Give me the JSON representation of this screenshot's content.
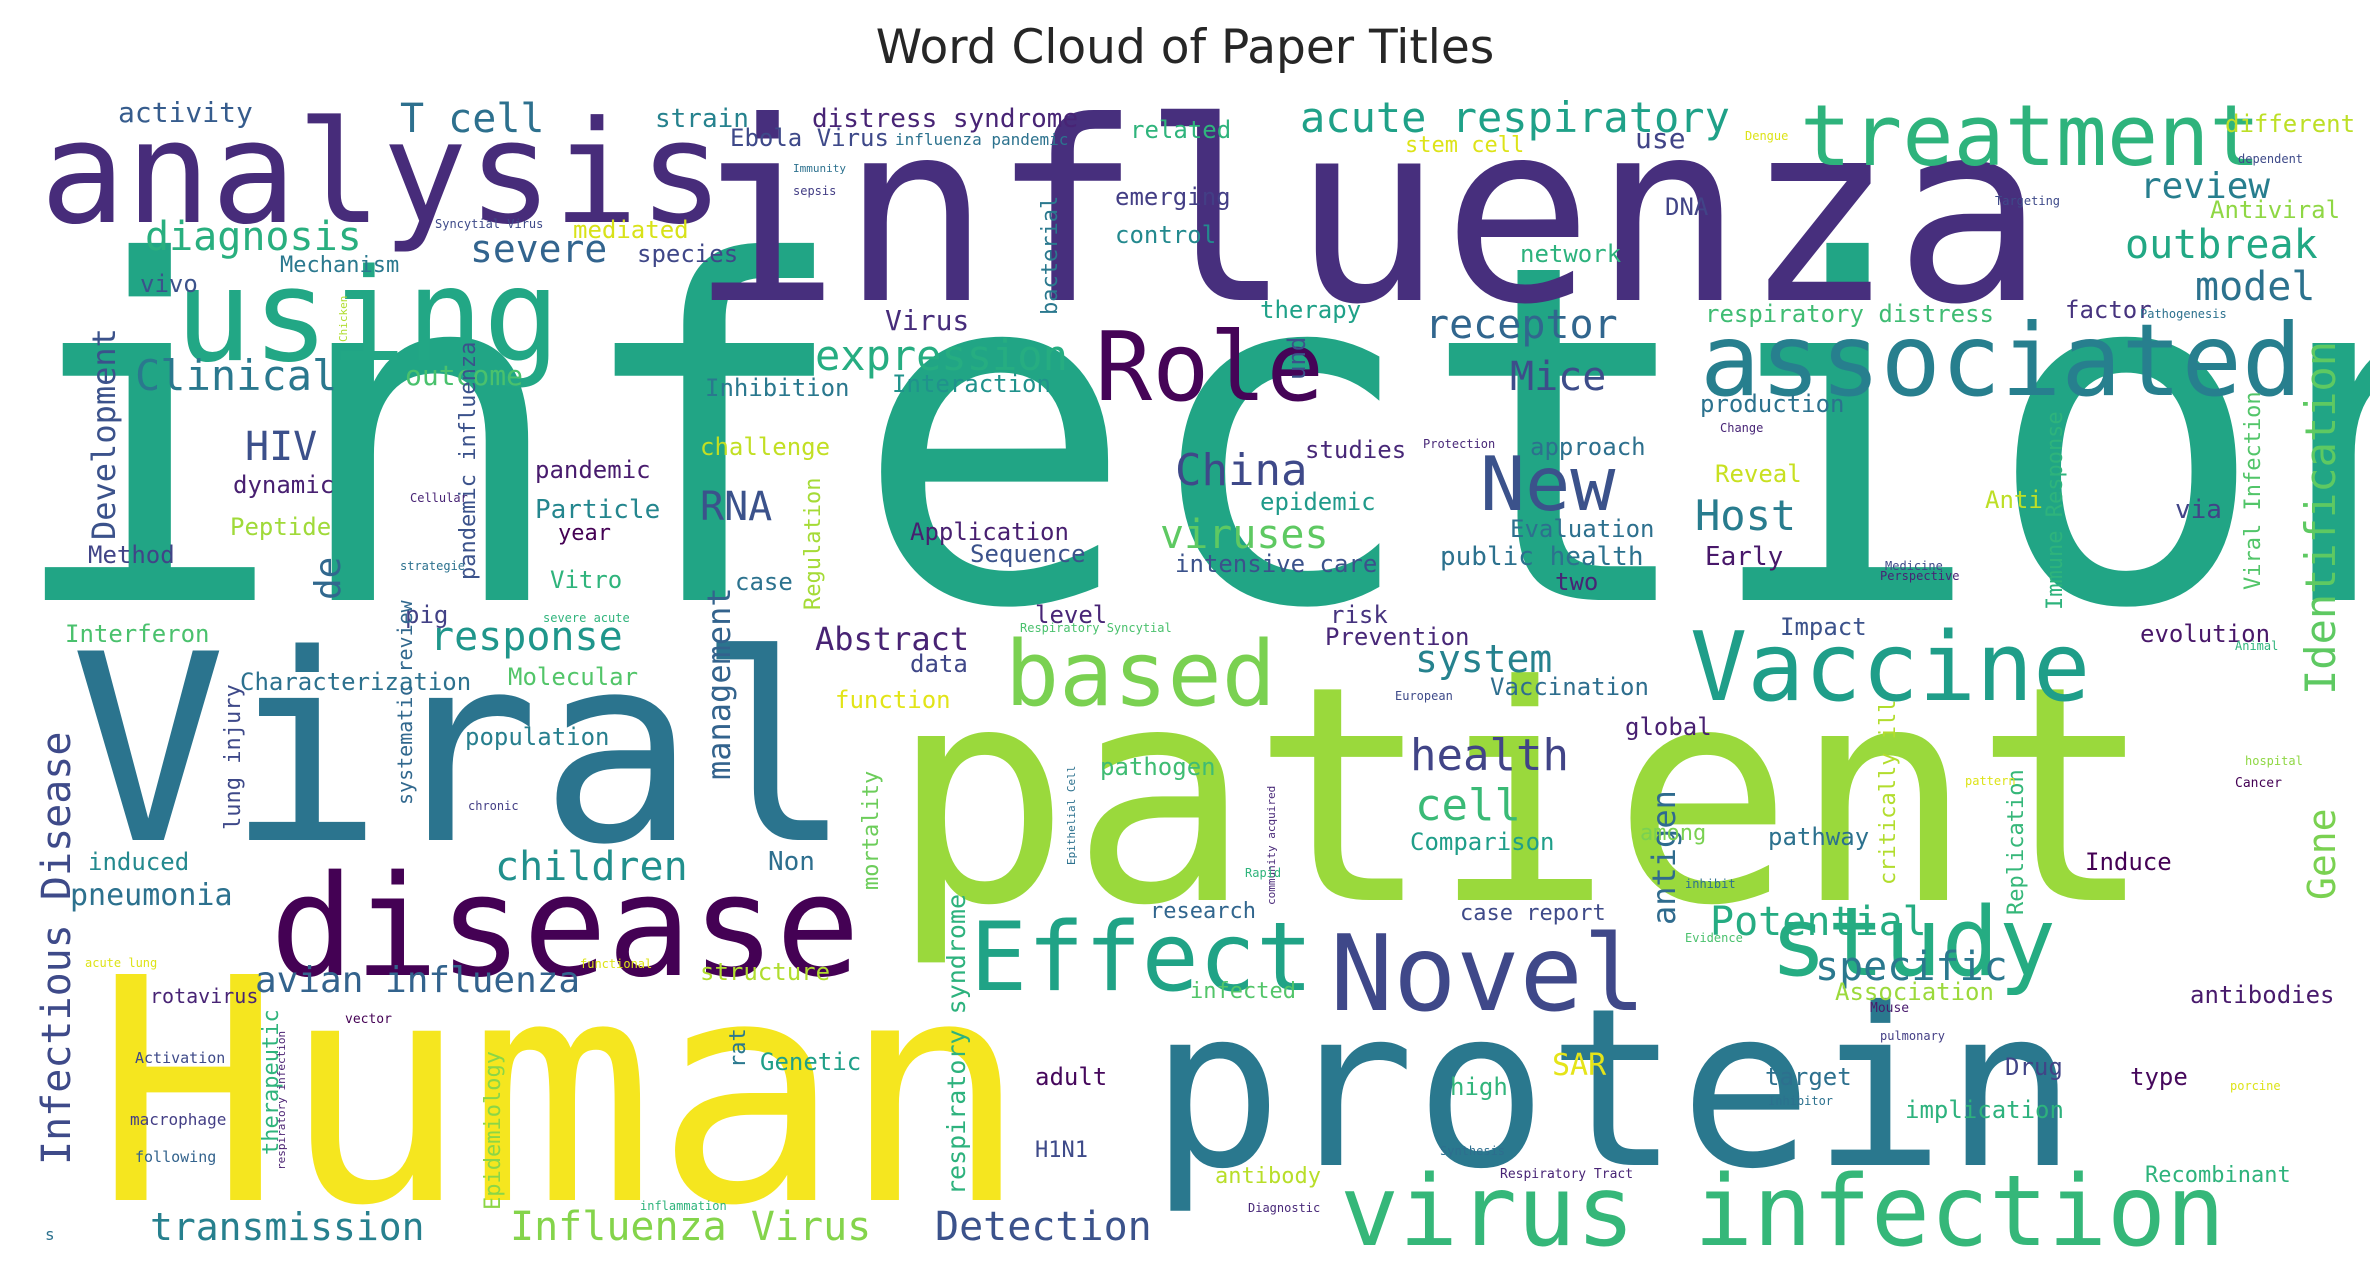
{
  "figure": {
    "title": "Word Cloud of Paper Titles"
  },
  "cloud": {
    "colormap": "viridis",
    "words": [
      {
        "text": "infection",
        "color": "#21a585"
      },
      {
        "text": "influenza",
        "color": "#472f7d"
      },
      {
        "text": "Human",
        "color": "#f5e61f"
      },
      {
        "text": "patient",
        "color": "#9ad93c"
      },
      {
        "text": "Viral",
        "color": "#2b748e"
      },
      {
        "text": "protein",
        "color": "#2a788e"
      },
      {
        "text": "analysis",
        "color": "#472c7a"
      },
      {
        "text": "disease",
        "color": "#440154"
      },
      {
        "text": "using",
        "color": "#22a785"
      },
      {
        "text": "treatment",
        "color": "#2eb37c"
      },
      {
        "text": "associated",
        "color": "#277f8e"
      },
      {
        "text": "Novel",
        "color": "#3f4889"
      },
      {
        "text": "virus infection",
        "color": "#35b779"
      },
      {
        "text": "Vaccine",
        "color": "#1f9e89"
      },
      {
        "text": "Effect",
        "color": "#20a386"
      },
      {
        "text": "study",
        "color": "#25ac82"
      },
      {
        "text": "based",
        "color": "#7ad151"
      },
      {
        "text": "Role",
        "color": "#450457"
      },
      {
        "text": "New",
        "color": "#3b528b"
      },
      {
        "text": "Identification",
        "color": "#5ec962"
      },
      {
        "text": "Infectious Disease",
        "color": "#3e4a89"
      },
      {
        "text": "respiratory syndrome",
        "color": "#2db27d"
      },
      {
        "text": "acute respiratory",
        "color": "#1fa188"
      },
      {
        "text": "expression",
        "color": "#26ad81"
      },
      {
        "text": "Clinical",
        "color": "#2a788e"
      },
      {
        "text": "diagnosis",
        "color": "#29af7f"
      },
      {
        "text": "T cell",
        "color": "#2d708e"
      },
      {
        "text": "severe",
        "color": "#32648e"
      },
      {
        "text": "outbreak",
        "color": "#22a884"
      },
      {
        "text": "review",
        "color": "#277e8e"
      },
      {
        "text": "model",
        "color": "#2c728e"
      },
      {
        "text": "receptor",
        "color": "#31668e"
      },
      {
        "text": "China",
        "color": "#3e4989"
      },
      {
        "text": "HIV",
        "color": "#3c508b"
      },
      {
        "text": "RNA",
        "color": "#3b528b"
      },
      {
        "text": "viruses",
        "color": "#5ec962"
      },
      {
        "text": "Host",
        "color": "#287c8e"
      },
      {
        "text": "Development",
        "color": "#3b528b"
      },
      {
        "text": "Mice",
        "color": "#3d4d8a"
      },
      {
        "text": "response",
        "color": "#1f968b"
      },
      {
        "text": "system",
        "color": "#26828e"
      },
      {
        "text": "health",
        "color": "#414487"
      },
      {
        "text": "cell",
        "color": "#3aba76"
      },
      {
        "text": "children",
        "color": "#21908d"
      },
      {
        "text": "management",
        "color": "#33638d"
      },
      {
        "text": "antigen",
        "color": "#2f6b8e"
      },
      {
        "text": "Gene",
        "color": "#7ad151"
      },
      {
        "text": "Potential",
        "color": "#25ac82"
      },
      {
        "text": "specific",
        "color": "#2a788e"
      },
      {
        "text": "de",
        "color": "#31688e"
      },
      {
        "text": "pneumonia",
        "color": "#2c718e"
      },
      {
        "text": "avian influenza",
        "color": "#33638d"
      },
      {
        "text": "transmission",
        "color": "#27808e"
      },
      {
        "text": "Influenza Virus",
        "color": "#84d44b"
      },
      {
        "text": "Detection",
        "color": "#3b528b"
      },
      {
        "text": "Abstract",
        "color": "#482374"
      },
      {
        "text": "distress syndrome",
        "color": "#482475"
      },
      {
        "text": "Ebola Virus",
        "color": "#3e4989"
      },
      {
        "text": "activity",
        "color": "#365c8d"
      },
      {
        "text": "strain",
        "color": "#26828e"
      },
      {
        "text": "related",
        "color": "#2fb47c"
      },
      {
        "text": "use",
        "color": "#414487"
      },
      {
        "text": "stem cell",
        "color": "#dde318"
      },
      {
        "text": "different",
        "color": "#bddf26"
      },
      {
        "text": "Antiviral",
        "color": "#8fd744"
      },
      {
        "text": "emerging",
        "color": "#433e85"
      },
      {
        "text": "control",
        "color": "#23898e"
      },
      {
        "text": "mediated",
        "color": "#d8e219"
      },
      {
        "text": "species",
        "color": "#3f4788"
      },
      {
        "text": "Mechanism",
        "color": "#2a788e"
      },
      {
        "text": "vivo",
        "color": "#3b528b"
      },
      {
        "text": "network",
        "color": "#2db27d"
      },
      {
        "text": "DNA",
        "color": "#414487"
      },
      {
        "text": "bacterial",
        "color": "#2a788e"
      },
      {
        "text": "outcome",
        "color": "#4ac16d"
      },
      {
        "text": "Virus",
        "color": "#472d7b"
      },
      {
        "text": "Inhibition",
        "color": "#2a788e"
      },
      {
        "text": "Interaction",
        "color": "#20928c"
      },
      {
        "text": "und",
        "color": "#3b528b"
      },
      {
        "text": "therapy",
        "color": "#1fa188"
      },
      {
        "text": "respiratory distress",
        "color": "#3fbc73"
      },
      {
        "text": "factor",
        "color": "#46337e"
      },
      {
        "text": "production",
        "color": "#2c728e"
      },
      {
        "text": "challenge",
        "color": "#c2df23"
      },
      {
        "text": "studies",
        "color": "#482878"
      },
      {
        "text": "approach",
        "color": "#2d708e"
      },
      {
        "text": "Reveal",
        "color": "#c8e020"
      },
      {
        "text": "pandemic",
        "color": "#481b6d"
      },
      {
        "text": "dynamic",
        "color": "#482071"
      },
      {
        "text": "Particle",
        "color": "#24868e"
      },
      {
        "text": "epidemic",
        "color": "#1f9a8a"
      },
      {
        "text": "Evaluation",
        "color": "#2d708e"
      },
      {
        "text": "Peptide",
        "color": "#a0da39"
      },
      {
        "text": "Method",
        "color": "#414487"
      },
      {
        "text": "Application",
        "color": "#481f70"
      },
      {
        "text": "Sequence",
        "color": "#3b528b"
      },
      {
        "text": "year",
        "color": "#440154"
      },
      {
        "text": "intensive care",
        "color": "#3b528b"
      },
      {
        "text": "public health",
        "color": "#2c718e"
      },
      {
        "text": "Early",
        "color": "#48186a"
      },
      {
        "text": "two",
        "color": "#482475"
      },
      {
        "text": "Vitro",
        "color": "#2fb47c"
      },
      {
        "text": "case",
        "color": "#2c728e"
      },
      {
        "text": "Regulation",
        "color": "#a5db36"
      },
      {
        "text": "pig",
        "color": "#424186"
      },
      {
        "text": "level",
        "color": "#482576"
      },
      {
        "text": "risk",
        "color": "#46337e"
      },
      {
        "text": "Prevention",
        "color": "#482878"
      },
      {
        "text": "Impact",
        "color": "#3b528b"
      },
      {
        "text": "evolution",
        "color": "#481769"
      },
      {
        "text": "Interferon",
        "color": "#4ac16d"
      },
      {
        "text": "Characterization",
        "color": "#2c718e"
      },
      {
        "text": "Molecular",
        "color": "#52c569"
      },
      {
        "text": "data",
        "color": "#3f4788"
      },
      {
        "text": "function",
        "color": "#e2e418"
      },
      {
        "text": "Vaccination",
        "color": "#2e6e8e"
      },
      {
        "text": "global",
        "color": "#482071"
      },
      {
        "text": "population",
        "color": "#277f8e"
      },
      {
        "text": "lung injury",
        "color": "#3e4989"
      },
      {
        "text": "systematic review",
        "color": "#31688e"
      },
      {
        "text": "pathogen",
        "color": "#3fbc73"
      },
      {
        "text": "Comparison",
        "color": "#1f9e89"
      },
      {
        "text": "among",
        "color": "#7ad151"
      },
      {
        "text": "pathway",
        "color": "#2c718e"
      },
      {
        "text": "Induce",
        "color": "#440154"
      },
      {
        "text": "Non",
        "color": "#2e6f8e"
      },
      {
        "text": "induced",
        "color": "#23898e"
      },
      {
        "text": "mortality",
        "color": "#6ccd5a"
      },
      {
        "text": "critically ill",
        "color": "#b2dd2d"
      },
      {
        "text": "Replication",
        "color": "#35b779"
      },
      {
        "text": "Immune Response",
        "color": "#2eb37c"
      },
      {
        "text": "Viral Infection",
        "color": "#52c569"
      },
      {
        "text": "research",
        "color": "#31668e"
      },
      {
        "text": "case report",
        "color": "#3e4a89"
      },
      {
        "text": "structure",
        "color": "#b0dd2f"
      },
      {
        "text": "infected",
        "color": "#52c569"
      },
      {
        "text": "Association",
        "color": "#9bd93c"
      },
      {
        "text": "antibodies",
        "color": "#481a6c"
      },
      {
        "text": "Genetic",
        "color": "#1f9f88"
      },
      {
        "text": "rat",
        "color": "#2a788e"
      },
      {
        "text": "SAR",
        "color": "#e5e419"
      },
      {
        "text": "high",
        "color": "#31b57b"
      },
      {
        "text": "adult",
        "color": "#46085c"
      },
      {
        "text": "target",
        "color": "#2d708e"
      },
      {
        "text": "Drug",
        "color": "#414487"
      },
      {
        "text": "type",
        "color": "#46085c"
      },
      {
        "text": "implication",
        "color": "#2db27d"
      },
      {
        "text": "antibody",
        "color": "#b8de29"
      },
      {
        "text": "Recombinant",
        "color": "#2eb37c"
      },
      {
        "text": "H1N1",
        "color": "#3e4a89"
      },
      {
        "text": "Epidemiology",
        "color": "#8bd646"
      },
      {
        "text": "therapeutic",
        "color": "#2fb47c"
      },
      {
        "text": "rotavirus",
        "color": "#482475"
      },
      {
        "text": "Activation",
        "color": "#3e4a89"
      },
      {
        "text": "macrophage",
        "color": "#433e85"
      },
      {
        "text": "following",
        "color": "#33638d"
      },
      {
        "text": "pandemic influenza",
        "color": "#3b528b"
      },
      {
        "text": "influenza pandemic",
        "color": "#2c728e"
      },
      {
        "text": "Dengue",
        "color": "#dde318"
      },
      {
        "text": "dependent",
        "color": "#3e4a89"
      },
      {
        "text": "Targeting",
        "color": "#3e4a89"
      },
      {
        "text": "Pathogenesis",
        "color": "#2c718e"
      },
      {
        "text": "Change",
        "color": "#482576"
      },
      {
        "text": "Protection",
        "color": "#482878"
      },
      {
        "text": "Anti",
        "color": "#bddf26"
      },
      {
        "text": "via",
        "color": "#414487"
      },
      {
        "text": "Medicine",
        "color": "#3e4a89"
      },
      {
        "text": "Perspective",
        "color": "#482475"
      },
      {
        "text": "Animal",
        "color": "#2fb47c"
      },
      {
        "text": "hospital",
        "color": "#8fd744"
      },
      {
        "text": "Cancer",
        "color": "#440154"
      },
      {
        "text": "pattern",
        "color": "#dde318"
      },
      {
        "text": "Mouse",
        "color": "#481a6c"
      },
      {
        "text": "pulmonary",
        "color": "#433e85"
      },
      {
        "text": "porcine",
        "color": "#dde318"
      },
      {
        "text": "Inhibitor",
        "color": "#2c718e"
      },
      {
        "text": "Synthesis",
        "color": "#2e6e8e"
      },
      {
        "text": "Respiratory Tract",
        "color": "#482475"
      },
      {
        "text": "Diagnostic",
        "color": "#482878"
      },
      {
        "text": "inflammation",
        "color": "#2fb47c"
      },
      {
        "text": "respiratory infection",
        "color": "#481f70"
      },
      {
        "text": "vector",
        "color": "#440154"
      },
      {
        "text": "functional",
        "color": "#dde318"
      },
      {
        "text": "acute lung",
        "color": "#dde318"
      },
      {
        "text": "chronic",
        "color": "#433e85"
      },
      {
        "text": "community acquired",
        "color": "#482878"
      },
      {
        "text": "Epithelial Cell",
        "color": "#2c718e"
      },
      {
        "text": "Rapid",
        "color": "#2fb47c"
      },
      {
        "text": "inhibit",
        "color": "#2c718e"
      },
      {
        "text": "Evidence",
        "color": "#4ac16d"
      },
      {
        "text": "European",
        "color": "#3e4a89"
      },
      {
        "text": "Respiratory Syncytial",
        "color": "#4ac16d"
      },
      {
        "text": "severe acute",
        "color": "#2fb47c"
      },
      {
        "text": "Cellular",
        "color": "#482475"
      },
      {
        "text": "strategie",
        "color": "#2c718e"
      },
      {
        "text": "Syncytial Virus",
        "color": "#3e4a89"
      },
      {
        "text": "Chicken",
        "color": "#b0dd2f"
      },
      {
        "text": "Immunity",
        "color": "#2c718e"
      },
      {
        "text": "sepsis",
        "color": "#433e85"
      },
      {
        "text": "s",
        "color": "#2c718e"
      }
    ]
  }
}
